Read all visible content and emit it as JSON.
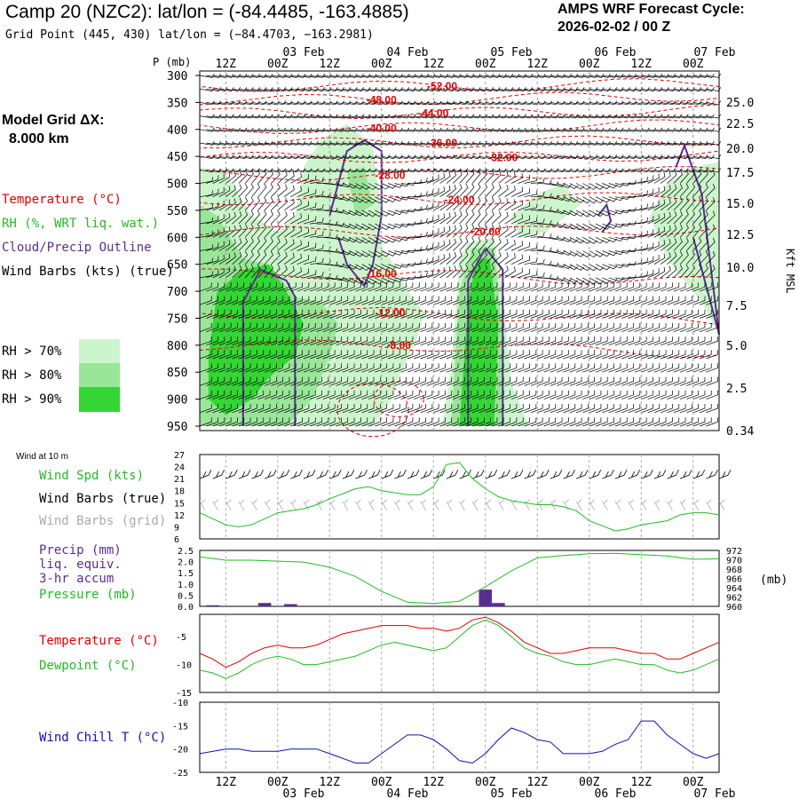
{
  "header": {
    "title": "Camp 20 (NZC2):  lat/lon = (-84.4485, -163.4885)",
    "grid_point": "Grid Point (445, 430) lat/lon = (−84.4703, −163.2981)",
    "cycle_label": "AMPS WRF Forecast Cycle:",
    "cycle_value": "2026-02-02 / 00  Z",
    "model_grid_label": "Model Grid ΔX:",
    "model_grid_value": "8.000 km"
  },
  "legend": {
    "temperature": "Temperature (°C)",
    "rh": "RH (%, WRT liq. wat.)",
    "cloud": "Cloud/Precip Outline",
    "wind": "Wind Barbs (kts) (true)",
    "rh70": "RH > 70%",
    "rh80": "RH > 80%",
    "rh90": "RH > 90%",
    "wind10m": "Wind at 10 m",
    "wind_spd": "Wind Spd (kts)",
    "wind_barbs_true": "Wind Barbs (true)",
    "wind_barbs_grid": "Wind Barbs (grid)",
    "precip_l1": "Precip (mm)",
    "precip_l2": "liq. equiv.",
    "precip_l3": "3-hr accum",
    "pressure": "Pressure (mb)",
    "temp2": "Temperature (°C)",
    "dewpoint": "Dewpoint (°C)",
    "windchill": "Wind Chill T (°C)"
  },
  "colors": {
    "temperature": "#e00000",
    "rh70": "#ccf5cc",
    "rh80": "#99e699",
    "rh90": "#33d633",
    "cloud": "#5a2d91",
    "wind_spd": "#22bb22",
    "grid_barbs": "#aaaaaa",
    "windchill": "#1010b0",
    "pressure": "#22bb22",
    "precip": "#5a2d91"
  },
  "chart_data": [
    {
      "type": "time-height cross section",
      "y_axis_label": "P (mb)",
      "y_ticks": [
        "300",
        "350",
        "400",
        "450",
        "500",
        "550",
        "600",
        "650",
        "700",
        "750",
        "800",
        "850",
        "900",
        "950"
      ],
      "right_axis_ticks": [
        "25.0",
        "22.5",
        "20.0",
        "17.5",
        "15.0",
        "12.5",
        "10.0",
        "7.5",
        "5.0",
        "2.5",
        "0.34"
      ],
      "right_axis_label": "Kft MSL",
      "time_ticks_top": [
        "12Z",
        "00Z",
        "12Z",
        "00Z",
        "12Z",
        "00Z",
        "12Z",
        "00Z",
        "12Z",
        "00Z"
      ],
      "date_labels_top": [
        "03 Feb",
        "04 Feb",
        "05 Feb",
        "06 Feb",
        "07 Feb"
      ],
      "x_hours": [
        0,
        120
      ],
      "temperature_contours": [
        "-52.00",
        "-48.00",
        "-44.00",
        "-40.00",
        "-36.00",
        "-32.00",
        "-28.00",
        "-24.00",
        "-20.00",
        "-16.00",
        "-12.00",
        "-8.00"
      ]
    },
    {
      "type": "line",
      "title": "Wind Spd (kts)",
      "y_ticks": [
        "27",
        "24",
        "21",
        "18",
        "15",
        "12",
        "9",
        "6"
      ],
      "ylim": [
        6,
        27
      ],
      "x_hours": [
        0,
        6,
        9,
        12,
        18,
        21,
        24,
        27,
        30,
        36,
        39,
        42,
        48,
        51,
        54,
        57,
        60,
        63,
        66,
        69,
        72,
        75,
        78,
        81,
        84,
        87,
        90,
        96,
        99,
        102,
        105,
        108,
        111,
        114,
        117,
        120
      ],
      "values": [
        12.5,
        9.5,
        9,
        9.5,
        12.5,
        13,
        13.5,
        14.5,
        16,
        18.5,
        19,
        18,
        17,
        17,
        19,
        24.5,
        25,
        21,
        18.5,
        16.5,
        15.5,
        15,
        14.5,
        14.5,
        14,
        13,
        10.5,
        8,
        8.5,
        9.5,
        10,
        10.5,
        12,
        12.5,
        12.5,
        12
      ]
    },
    {
      "type": "bar+line",
      "precip_y_ticks": [
        "2.5",
        "2.0",
        "1.5",
        "1.0",
        "0.5",
        "0.0"
      ],
      "pressure_y_ticks": [
        "972",
        "970",
        "968",
        "966",
        "964",
        "962",
        "960"
      ],
      "pressure_unit": "(mb)",
      "precip_x_hours": [
        3,
        15,
        21,
        66,
        69
      ],
      "precip_values": [
        0.05,
        0.15,
        0.1,
        0.75,
        0.15
      ],
      "pressure_x_hours": [
        0,
        6,
        12,
        18,
        24,
        30,
        36,
        42,
        48,
        54,
        60,
        66,
        72,
        78,
        84,
        90,
        96,
        102,
        108,
        114,
        120
      ],
      "pressure_values": [
        970.6,
        969.9,
        969.9,
        969.7,
        969.5,
        968.4,
        966.4,
        963.2,
        960.9,
        960.6,
        961.1,
        964.2,
        967.6,
        970.4,
        970.9,
        971.3,
        971.4,
        971.1,
        970.8,
        970.1,
        970.2
      ]
    },
    {
      "type": "line",
      "y_ticks": [
        "-5",
        "-10",
        "-15"
      ],
      "ylim": [
        -15,
        -1
      ],
      "series": [
        {
          "name": "Temperature (°C)",
          "x_hours": [
            0,
            3,
            6,
            9,
            12,
            15,
            18,
            21,
            24,
            27,
            30,
            33,
            36,
            39,
            42,
            45,
            48,
            51,
            54,
            57,
            60,
            63,
            66,
            69,
            72,
            75,
            78,
            81,
            84,
            87,
            90,
            93,
            96,
            99,
            102,
            105,
            108,
            111,
            114,
            117,
            120
          ],
          "values": [
            -8,
            -9,
            -10.5,
            -9.5,
            -8,
            -7,
            -6.5,
            -7,
            -7,
            -6.5,
            -5.5,
            -4.5,
            -4,
            -3.5,
            -3,
            -3,
            -3,
            -3.5,
            -3.5,
            -4,
            -3.5,
            -2,
            -1.5,
            -2.5,
            -4,
            -6,
            -7,
            -8,
            -8,
            -7.5,
            -7,
            -7,
            -7,
            -7.5,
            -8,
            -8,
            -9,
            -9,
            -8,
            -7,
            -6
          ]
        },
        {
          "name": "Dewpoint (°C)",
          "x_hours": [
            0,
            3,
            6,
            9,
            12,
            15,
            18,
            21,
            24,
            27,
            30,
            33,
            36,
            39,
            42,
            45,
            48,
            51,
            54,
            57,
            60,
            63,
            66,
            69,
            72,
            75,
            78,
            81,
            84,
            87,
            90,
            93,
            96,
            99,
            102,
            105,
            108,
            111,
            114,
            117,
            120
          ],
          "values": [
            -11,
            -11.5,
            -12.5,
            -11.5,
            -10,
            -9,
            -8.5,
            -9,
            -10,
            -10,
            -9.5,
            -9,
            -8.5,
            -7.5,
            -6.5,
            -6,
            -6.5,
            -7,
            -7.5,
            -7,
            -5,
            -3,
            -2,
            -3,
            -5,
            -7,
            -8,
            -8.5,
            -9.5,
            -10,
            -10,
            -9.5,
            -9,
            -9.5,
            -10,
            -10,
            -11,
            -11.5,
            -11,
            -10,
            -9
          ]
        }
      ]
    },
    {
      "type": "line",
      "y_ticks": [
        "-10",
        "-15",
        "-20",
        "-25"
      ],
      "ylim": [
        -25,
        -10
      ],
      "x_hours": [
        0,
        6,
        9,
        12,
        15,
        18,
        21,
        24,
        27,
        30,
        33,
        36,
        39,
        42,
        45,
        48,
        51,
        54,
        57,
        60,
        63,
        66,
        69,
        72,
        75,
        78,
        81,
        84,
        87,
        90,
        93,
        96,
        99,
        102,
        105,
        108,
        111,
        114,
        117,
        120
      ],
      "values": [
        -21,
        -20,
        -20,
        -20.5,
        -20.5,
        -20.5,
        -20,
        -20,
        -20,
        -21,
        -22,
        -23,
        -23,
        -21,
        -19,
        -17,
        -17,
        -18,
        -20,
        -22.5,
        -23,
        -21,
        -18,
        -15.5,
        -16.5,
        -18,
        -18.5,
        -21,
        -21,
        -21,
        -20.5,
        -19,
        -18,
        -14,
        -14,
        -17,
        -19,
        -21,
        -22,
        -21
      ]
    }
  ],
  "bottom_axis": {
    "time_ticks": [
      "12Z",
      "00Z",
      "12Z",
      "00Z",
      "12Z",
      "00Z",
      "12Z",
      "00Z",
      "12Z",
      "00Z"
    ],
    "date_labels": [
      "03 Feb",
      "04 Feb",
      "05 Feb",
      "06 Feb",
      "07 Feb"
    ]
  }
}
